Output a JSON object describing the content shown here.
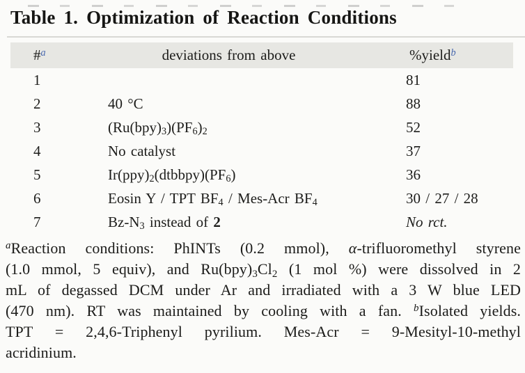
{
  "colors": {
    "accent": "#4868ae",
    "header_bg": "#e7e7e3",
    "rule": "#d8d8d4",
    "ink": "#1d1d1b",
    "paper": "#fbfbf9"
  },
  "title": "Table 1. Optimization of Reaction Conditions",
  "table": {
    "header": {
      "num_label": "#",
      "num_marker": "a",
      "deviation_label": "deviations from above",
      "yield_label": "%yield",
      "yield_marker": "b"
    },
    "rows": [
      {
        "num": "1",
        "deviation": [],
        "yield": [
          {
            "t": "81"
          }
        ]
      },
      {
        "num": "2",
        "deviation": [
          {
            "t": "40 °C"
          }
        ],
        "yield": [
          {
            "t": "88"
          }
        ]
      },
      {
        "num": "3",
        "deviation": [
          {
            "t": "(Ru(bpy)"
          },
          {
            "t": "3",
            "sub": true
          },
          {
            "t": ")(PF"
          },
          {
            "t": "6",
            "sub": true
          },
          {
            "t": ")"
          },
          {
            "t": "2",
            "sub": true
          }
        ],
        "yield": [
          {
            "t": "52"
          }
        ]
      },
      {
        "num": "4",
        "deviation": [
          {
            "t": "No catalyst"
          }
        ],
        "yield": [
          {
            "t": "37"
          }
        ]
      },
      {
        "num": "5",
        "deviation": [
          {
            "t": "Ir(ppy)"
          },
          {
            "t": "2",
            "sub": true
          },
          {
            "t": "(dtbbpy)(PF"
          },
          {
            "t": "6",
            "sub": true
          },
          {
            "t": ")"
          }
        ],
        "yield": [
          {
            "t": "36"
          }
        ]
      },
      {
        "num": "6",
        "deviation": [
          {
            "t": "Eosin Y / TPT BF"
          },
          {
            "t": "4",
            "sub": true
          },
          {
            "t": " / Mes-Acr BF"
          },
          {
            "t": "4",
            "sub": true
          }
        ],
        "yield": [
          {
            "t": "30 / 27 / 28"
          }
        ]
      },
      {
        "num": "7",
        "deviation": [
          {
            "t": "Bz-N"
          },
          {
            "t": "3",
            "sub": true
          },
          {
            "t": " instead of "
          },
          {
            "t": "2",
            "b": true
          }
        ],
        "yield": [
          {
            "t": "No rct.",
            "i": true
          }
        ]
      }
    ]
  },
  "footnote": {
    "lines": [
      [
        {
          "t": "a",
          "sup": true,
          "i": true
        },
        {
          "t": "Reaction conditions: PhINTs (0.2 mmol), "
        },
        {
          "t": "α",
          "i": true
        },
        {
          "t": "-trifluoromethyl styrene"
        }
      ],
      [
        {
          "t": "(1.0 mmol, 5 equiv), and Ru(bpy)"
        },
        {
          "t": "3",
          "sub": true
        },
        {
          "t": "Cl"
        },
        {
          "t": "2",
          "sub": true
        },
        {
          "t": " (1 mol %) were dissolved in 2"
        }
      ],
      [
        {
          "t": "mL of degassed DCM under Ar and irradiated with a 3 W blue LED"
        }
      ],
      [
        {
          "t": "(470 nm). RT was maintained by cooling with a fan. "
        },
        {
          "t": "b",
          "sup": true,
          "i": true
        },
        {
          "t": "Isolated yields."
        }
      ],
      [
        {
          "t": "TPT = 2,4,6-Triphenyl pyrilium. Mes-Acr = 9-Mesityl-10-methyl"
        }
      ],
      [
        {
          "t": "acridinium."
        }
      ]
    ]
  }
}
